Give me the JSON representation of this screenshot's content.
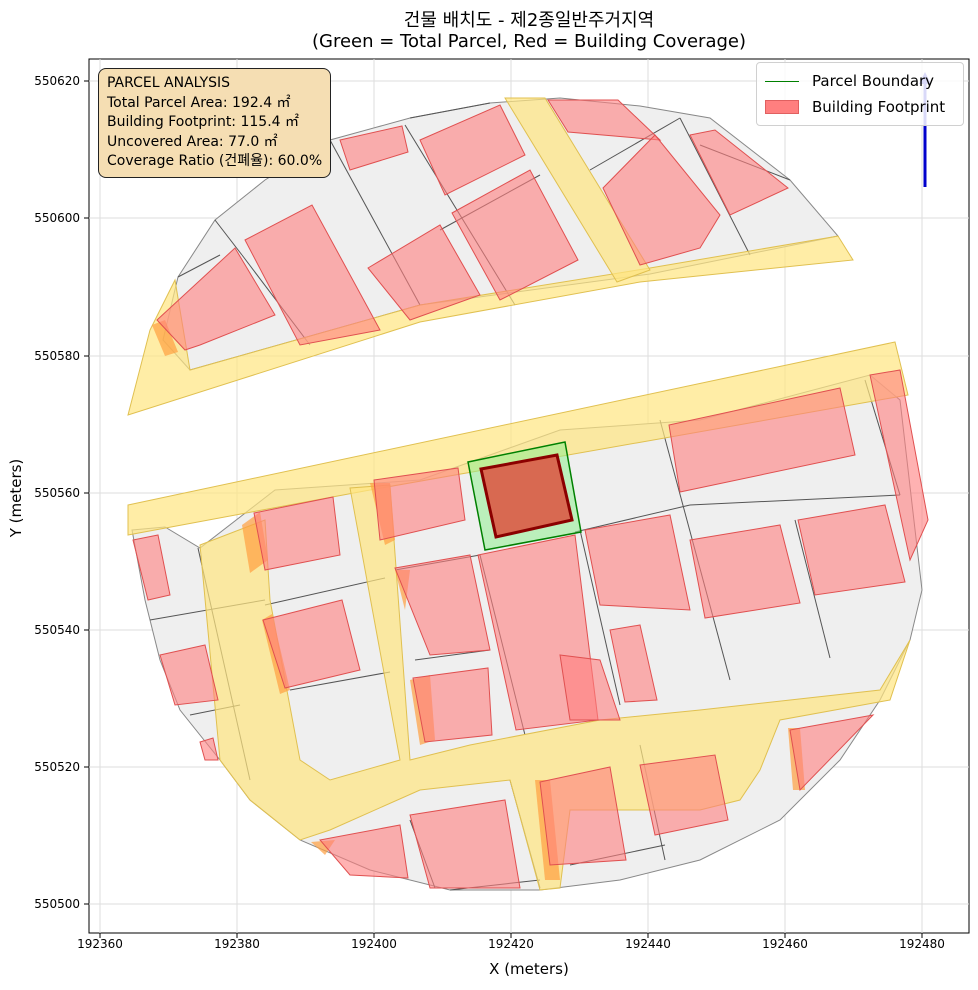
{
  "title": "건물 배치도 - 제2종일반주거지역",
  "subtitle": "(Green = Total Parcel, Red = Building Coverage)",
  "xlabel": "X (meters)",
  "ylabel": "Y (meters)",
  "xticks": [
    "192360",
    "192380",
    "192400",
    "192420",
    "192440",
    "192460",
    "192480"
  ],
  "yticks": [
    "550500",
    "550520",
    "550540",
    "550560",
    "550580",
    "550600",
    "550620"
  ],
  "info": {
    "heading": "PARCEL ANALYSIS",
    "total": "Total Parcel Area: 192.4 ㎡",
    "footprint": "Building Footprint: 115.4 ㎡",
    "uncovered": "Uncovered Area: 77.0 ㎡",
    "coverage": "Coverage Ratio (건폐율): 60.0%"
  },
  "legend": {
    "parcel": "Parcel Boundary",
    "building": "Building Footprint"
  },
  "colors": {
    "parcel_edge": "#008000",
    "parcel_fill": "#90ee90",
    "building_fill": "#ff7f7f",
    "target_building_edge": "#8b0000",
    "road_fill": "#ffe680",
    "lot_fill": "#efefef",
    "north_arrow": "#0000cc",
    "info_box": "#f5deb3"
  },
  "icons": {
    "north_arrow": "north-arrow-icon"
  }
}
